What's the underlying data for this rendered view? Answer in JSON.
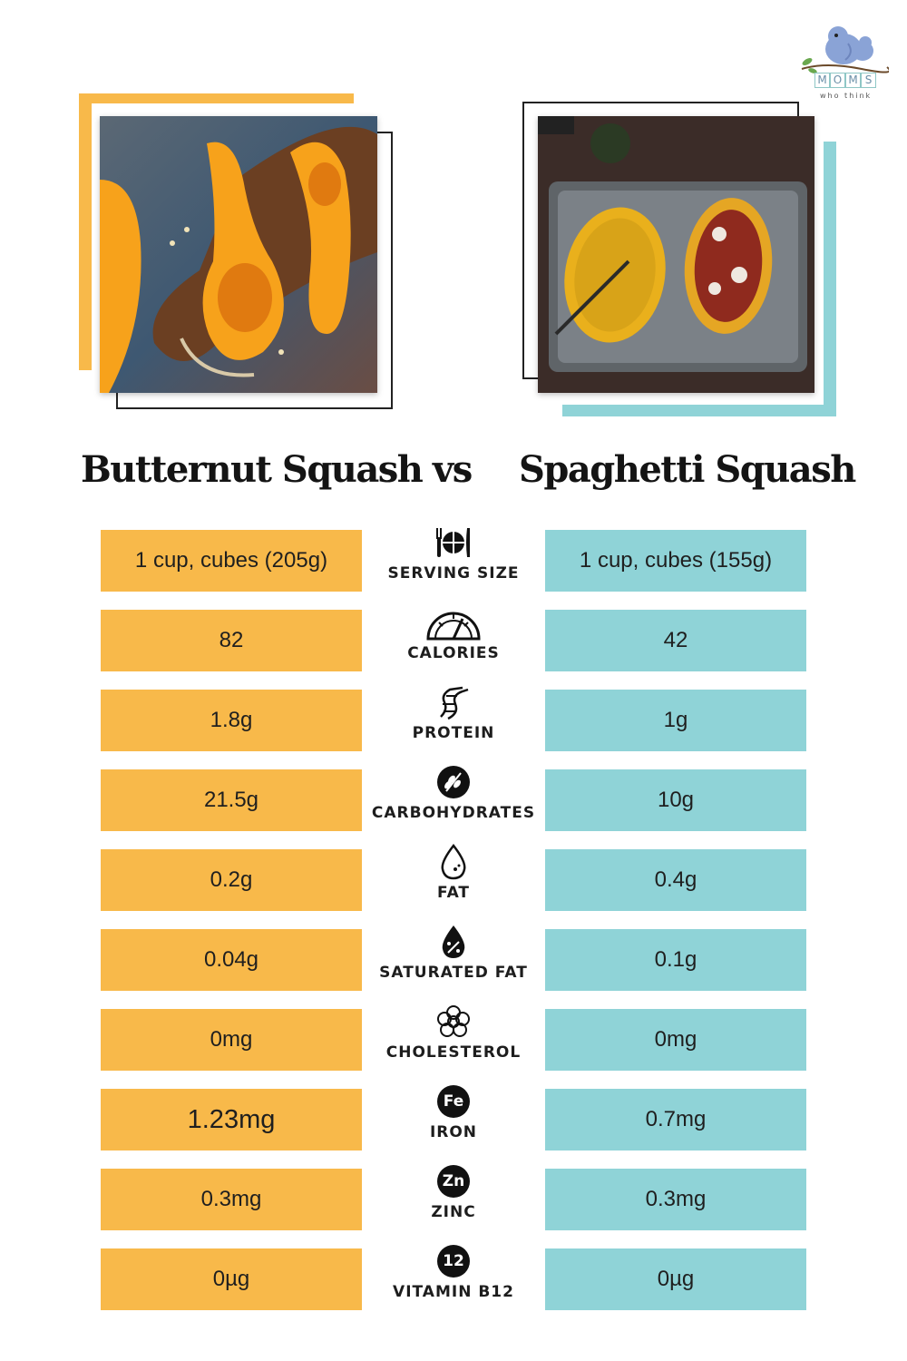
{
  "logo": {
    "letters": [
      "M",
      "O",
      "M",
      "S"
    ],
    "subtitle": "who think"
  },
  "title": {
    "left": "Butternut Squash",
    "vs": "vs",
    "right": "Spaghetti Squash"
  },
  "colors": {
    "butternut": "#f8b94a",
    "spaghetti": "#8fd3d7"
  },
  "rows": [
    {
      "label": "SERVING SIZE",
      "icon": "plate-cutlery-icon",
      "left": "1 cup, cubes (205g)",
      "right": "1 cup, cubes (155g)"
    },
    {
      "label": "CALORIES",
      "icon": "gauge-icon",
      "left": "82",
      "right": "42"
    },
    {
      "label": "PROTEIN",
      "icon": "dna-icon",
      "left": "1.8g",
      "right": "1g"
    },
    {
      "label": "CARBOHYDRATES",
      "icon": "grain-icon",
      "left": "21.5g",
      "right": "10g"
    },
    {
      "label": "FAT",
      "icon": "drop-icon",
      "left": "0.2g",
      "right": "0.4g"
    },
    {
      "label": "SATURATED FAT",
      "icon": "percent-drop-icon",
      "left": "0.04g",
      "right": "0.1g"
    },
    {
      "label": "CHOLESTEROL",
      "icon": "cholesterol-icon",
      "left": "0mg",
      "right": "0mg"
    },
    {
      "label": "IRON",
      "icon": "iron-badge-icon",
      "badge": "Fe",
      "left": "1.23mg",
      "right": "0.7mg"
    },
    {
      "label": "ZINC",
      "icon": "zinc-badge-icon",
      "badge": "Zn",
      "left": "0.3mg",
      "right": "0.3mg"
    },
    {
      "label": "VITAMIN B12",
      "icon": "b12-badge-icon",
      "badge": "12",
      "left": "0µg",
      "right": "0µg"
    }
  ]
}
